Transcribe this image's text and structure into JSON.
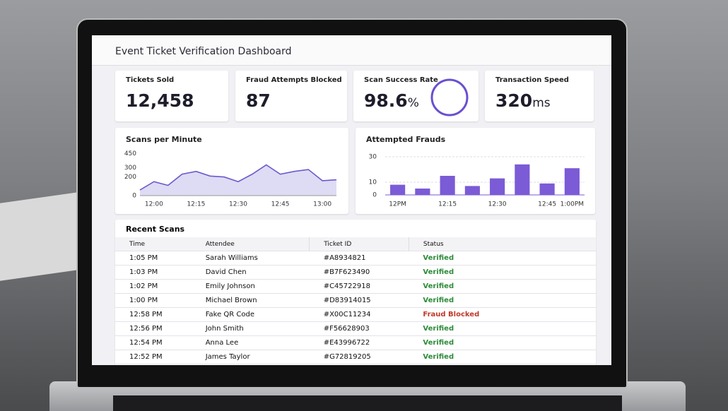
{
  "header": {
    "title": "Event Ticket Verification Dashboard"
  },
  "kpis": [
    {
      "label": "Tickets Sold",
      "value": "12,458"
    },
    {
      "label": "Fraud Attempts Blocked",
      "value": "87"
    },
    {
      "label": "Scan Success Rate",
      "value": "98.6",
      "unit": "%"
    },
    {
      "label": "Transaction Speed",
      "value": "320",
      "unit": "ms"
    }
  ],
  "chart_data": [
    {
      "type": "line",
      "title": "Scans per Minute",
      "color": "#6a5acd",
      "categories": [
        null,
        "12:00",
        null,
        null,
        "12:15",
        null,
        null,
        "12:30",
        null,
        null,
        "12:45",
        null,
        null,
        "13:00",
        null
      ],
      "values": [
        60,
        150,
        110,
        230,
        260,
        210,
        200,
        150,
        230,
        330,
        230,
        260,
        280,
        160,
        170
      ],
      "ylim": [
        0,
        500
      ],
      "yticks": [
        0,
        200,
        300,
        450
      ]
    },
    {
      "type": "bar",
      "title": "Attempted Frauds",
      "color": "#7b5bd6",
      "categories": [
        "12PM",
        null,
        "12:15",
        null,
        "12:30",
        null,
        "12:45",
        "1:00PM"
      ],
      "values": [
        8,
        5,
        15,
        7,
        13,
        24,
        9,
        21
      ],
      "ylim": [
        0,
        35
      ],
      "yticks": [
        0,
        10,
        30
      ],
      "grid": true
    }
  ],
  "table": {
    "title": "Recent Scans",
    "columns": [
      "Time",
      "Attendee",
      "Ticket ID",
      "Status"
    ],
    "rows": [
      [
        "1:05 PM",
        "Sarah Williams",
        "#A8934821",
        {
          "text": "Verified",
          "color": "#2e8b3a"
        }
      ],
      [
        "1:03 PM",
        "David Chen",
        "#B7F623490",
        {
          "text": "Verified",
          "color": "#2e8b3a"
        }
      ],
      [
        "1:02 PM",
        "Emily Johnson",
        "#C45722918",
        {
          "text": "Verified",
          "color": "#2e8b3a"
        }
      ],
      [
        "1:00 PM",
        "Michael Brown",
        "#D83914015",
        {
          "text": "Verified",
          "color": "#2e8b3a"
        }
      ],
      [
        "12:58 PM",
        "Fake QR Code",
        "#X00C11234",
        {
          "text": "Fraud Blocked",
          "color": "#c0392b"
        }
      ],
      [
        "12:56 PM",
        "John Smith",
        "#F56628903",
        {
          "text": "Verified",
          "color": "#2e8b3a"
        }
      ],
      [
        "12:54 PM",
        "Anna Lee",
        "#E43996722",
        {
          "text": "Verified",
          "color": "#2e8b3a"
        }
      ],
      [
        "12:52 PM",
        "James Taylor",
        "#G72819205",
        {
          "text": "Verified",
          "color": "#2e8b3a"
        }
      ]
    ]
  }
}
